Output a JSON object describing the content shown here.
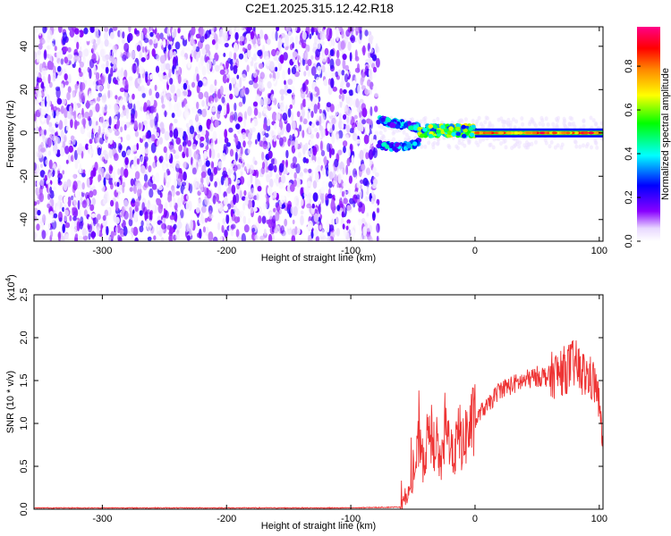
{
  "title": "C2E1.2025.315.12.42.R18",
  "chart_data": [
    {
      "type": "heatmap",
      "xlabel": "Height of straight line (km)",
      "ylabel": "Frequency (Hz)",
      "xlim": [
        -355,
        103
      ],
      "ylim": [
        -50,
        49
      ],
      "xticks": [
        -300,
        -200,
        -100,
        0,
        100
      ],
      "yticks": [
        -40,
        -20,
        0,
        20,
        40
      ],
      "colorbar": {
        "label": "Normalized spectral amplitude",
        "range": [
          0.0,
          0.98
        ],
        "ticks": [
          "0.0",
          "0.2",
          "0.4",
          "0.6",
          "0.8"
        ],
        "colors": [
          "#ffffff",
          "#e8d8ff",
          "#8800ff",
          "#0000ff",
          "#00ffff",
          "#00ff00",
          "#ffff00",
          "#ff8800",
          "#ff0000",
          "#ff0088"
        ]
      },
      "regions": [
        {
          "x_range": [
            -355,
            -78
          ],
          "description": "noise",
          "freq_range": [
            -50,
            49
          ],
          "amplitude": 0.1
        },
        {
          "x_range": [
            -78,
            -45
          ],
          "description": "split echo",
          "freq_centers": [
            6,
            -5
          ],
          "amplitude": 0.35
        },
        {
          "x_range": [
            -45,
            0
          ],
          "description": "merging echo",
          "freq_center": 1,
          "amplitude": 0.5
        },
        {
          "x_range": [
            0,
            103
          ],
          "description": "steady echo",
          "freq_center": 0,
          "amplitude": 0.9
        }
      ]
    },
    {
      "type": "line",
      "xlabel": "Height of straight line (km)",
      "ylabel": "SNR (10 * v/v)",
      "y_multiplier": "(x10",
      "y_multiplier_exp": "4",
      "y_multiplier_close": ")",
      "xlim": [
        -355,
        103
      ],
      "ylim": [
        0,
        2.5
      ],
      "xticks": [
        -300,
        -200,
        -100,
        0,
        100
      ],
      "yticks": [
        "0.0",
        "0.5",
        "1.0",
        "1.5",
        "2.0",
        "2.5"
      ],
      "series": [
        {
          "color": "#ee3333",
          "x": [
            -355,
            -200,
            -100,
            -60,
            -55,
            -50,
            -47,
            -44,
            -42,
            -40,
            -38,
            -36,
            -34,
            -32,
            -30,
            -28,
            -26,
            -24,
            -22,
            -20,
            -18,
            -16,
            -14,
            -12,
            -10,
            -8,
            -6,
            -4,
            -2,
            0,
            5,
            10,
            15,
            20,
            30,
            40,
            50,
            60,
            70,
            75,
            80,
            85,
            90,
            95,
            98,
            100,
            102,
            103
          ],
          "y": [
            0.01,
            0.01,
            0.01,
            0.02,
            0.15,
            0.3,
            0.6,
            0.9,
            0.5,
            0.7,
            0.8,
            1.1,
            0.6,
            0.9,
            0.7,
            0.5,
            0.6,
            1.0,
            0.8,
            0.9,
            0.6,
            0.7,
            0.8,
            0.9,
            0.7,
            0.85,
            0.9,
            0.95,
            1.0,
            1.0,
            1.15,
            1.2,
            1.3,
            1.4,
            1.45,
            1.5,
            1.55,
            1.55,
            1.6,
            1.65,
            1.7,
            1.6,
            1.55,
            1.5,
            1.4,
            1.2,
            0.9,
            0.7
          ]
        }
      ]
    }
  ]
}
